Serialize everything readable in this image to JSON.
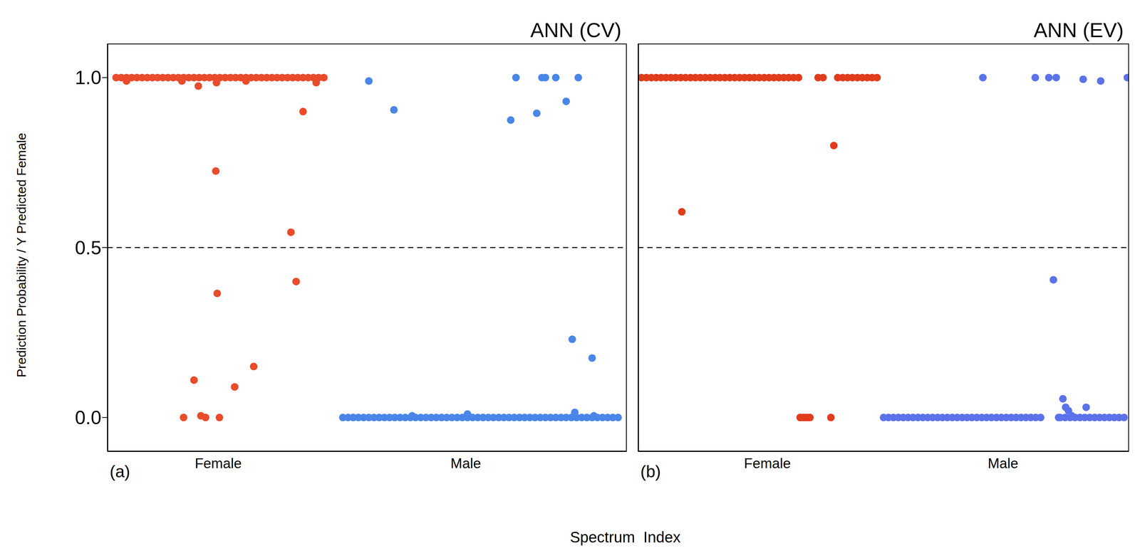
{
  "ylabel": "Prediction Probability / Y  Predicted  Female",
  "xlabel": "Spectrum  Index",
  "chart_data": [
    {
      "type": "scatter",
      "title": "ANN (CV)",
      "panel_label": "(a)",
      "xlim": [
        0,
        300
      ],
      "ylim": [
        -0.1,
        1.1
      ],
      "xticks": [
        {
          "value": 64,
          "label": "Female"
        },
        {
          "value": 207,
          "label": "Male"
        }
      ],
      "yticks": [
        {
          "value": 0,
          "label": "0.0"
        },
        {
          "value": 0.5,
          "label": "0.5"
        },
        {
          "value": 1,
          "label": "1.0"
        }
      ],
      "hline": 0.5,
      "series": [
        {
          "name": "Female",
          "color": "#e94b2b",
          "x": [
            5,
            8,
            11,
            14,
            17,
            20,
            23,
            26,
            29,
            32,
            35,
            38,
            41,
            44,
            47,
            50,
            53,
            56,
            59,
            62,
            65,
            68,
            71,
            74,
            77,
            80,
            83,
            86,
            89,
            92,
            95,
            98,
            101,
            104,
            107,
            110,
            113,
            116,
            119,
            122,
            125,
            11,
            43,
            52.5,
            63,
            80,
            120.6,
            113,
            62.6,
            106,
            109,
            63.4,
            50,
            84.5,
            73.5,
            44,
            54,
            56.7,
            64.7
          ],
          "values": [
            1,
            1,
            1,
            1,
            1,
            1,
            1,
            1,
            1,
            1,
            1,
            1,
            1,
            1,
            1,
            1,
            1,
            1,
            1,
            1,
            1,
            1,
            1,
            1,
            1,
            1,
            1,
            1,
            1,
            1,
            1,
            1,
            1,
            1,
            1,
            1,
            1,
            1,
            1,
            1,
            1,
            0.99,
            0.99,
            0.975,
            0.985,
            0.99,
            0.985,
            0.9,
            0.725,
            0.545,
            0.4,
            0.365,
            0.11,
            0.15,
            0.09,
            0,
            0.005,
            0,
            0
          ]
        },
        {
          "name": "Male",
          "color": "#4a86e8",
          "x": [
            136,
            139,
            142,
            145,
            148,
            151,
            154,
            157,
            160,
            163,
            166,
            169,
            172,
            175,
            178,
            181,
            184,
            187,
            190,
            193,
            196,
            199,
            202,
            205,
            208,
            211,
            214,
            217,
            220,
            223,
            226,
            229,
            232,
            235,
            238,
            241,
            244,
            247,
            250,
            253,
            256,
            259,
            262,
            265,
            268,
            271,
            274,
            277,
            280,
            283,
            286,
            289,
            292,
            295,
            151,
            165.5,
            236,
            233,
            248,
            251,
            253,
            259,
            265,
            272,
            268.5,
            280,
            270,
            176,
            208,
            281
          ],
          "values": [
            0,
            0,
            0,
            0,
            0,
            0,
            0,
            0,
            0,
            0,
            0,
            0,
            0,
            0,
            0,
            0,
            0,
            0,
            0,
            0,
            0,
            0,
            0,
            0,
            0,
            0,
            0,
            0,
            0,
            0,
            0,
            0,
            0,
            0,
            0,
            0,
            0,
            0,
            0,
            0,
            0,
            0,
            0,
            0,
            0,
            0,
            0,
            0,
            0,
            0,
            0,
            0,
            0,
            0,
            0.99,
            0.905,
            1,
            0.875,
            0.895,
            1,
            1,
            1,
            0.93,
            1,
            0.23,
            0.175,
            0.015,
            0.005,
            0.01,
            0.005
          ]
        }
      ]
    },
    {
      "type": "scatter",
      "title": "ANN (EV)",
      "panel_label": "(b)",
      "xlim": [
        0,
        300
      ],
      "ylim": [
        -0.1,
        1.1
      ],
      "tick_labels": "x",
      "xticks": [
        {
          "value": 79,
          "label": "Female"
        },
        {
          "value": 223,
          "label": "Male"
        }
      ],
      "hline": 0.5,
      "series": [
        {
          "name": "Female",
          "color": "#e03c1c",
          "x": [
            2,
            5,
            8,
            11,
            14,
            17,
            20,
            23,
            26,
            29,
            32,
            35,
            38,
            41,
            44,
            47,
            50,
            53,
            56,
            59,
            62,
            65,
            68,
            71,
            74,
            77,
            80,
            83,
            86,
            89,
            92,
            95,
            98,
            110,
            113,
            122,
            125,
            128,
            131,
            134,
            137,
            140,
            143,
            146,
            26.7,
            119.6,
            99,
            100.5,
            102,
            103.5,
            105,
            117.8
          ],
          "values": [
            1,
            1,
            1,
            1,
            1,
            1,
            1,
            1,
            1,
            1,
            1,
            1,
            1,
            1,
            1,
            1,
            1,
            1,
            1,
            1,
            1,
            1,
            1,
            1,
            1,
            1,
            1,
            1,
            1,
            1,
            1,
            1,
            1,
            1,
            1,
            1,
            1,
            1,
            1,
            1,
            1,
            1,
            1,
            1,
            0.605,
            0.8,
            0,
            0,
            0,
            0,
            0,
            0
          ]
        },
        {
          "name": "Male",
          "color": "#5b72ea",
          "x": [
            150,
            153,
            156,
            159,
            162,
            165,
            168,
            171,
            174,
            177,
            180,
            183,
            186,
            189,
            192,
            195,
            198,
            201,
            204,
            207,
            210,
            213,
            216,
            219,
            222,
            225,
            228,
            231,
            234,
            237,
            240,
            243,
            246,
            258,
            261,
            264,
            267,
            270,
            273,
            276,
            279,
            282,
            285,
            288,
            291,
            294,
            297,
            210.7,
            242.7,
            251,
            255.5,
            272,
            282.7,
            299,
            253.8,
            259.6,
            261.3,
            263,
            265,
            257,
            273.8
          ],
          "values": [
            0,
            0,
            0,
            0,
            0,
            0,
            0,
            0,
            0,
            0,
            0,
            0,
            0,
            0,
            0,
            0,
            0,
            0,
            0,
            0,
            0,
            0,
            0,
            0,
            0,
            0,
            0,
            0,
            0,
            0,
            0,
            0,
            0,
            0,
            0,
            0,
            0,
            0,
            0,
            0,
            0,
            0,
            0,
            0,
            0,
            0,
            0,
            1,
            1,
            1,
            1,
            0.995,
            0.99,
            1,
            0.405,
            0.055,
            0.03,
            0.02,
            0.005,
            0,
            0.03
          ]
        }
      ]
    }
  ]
}
